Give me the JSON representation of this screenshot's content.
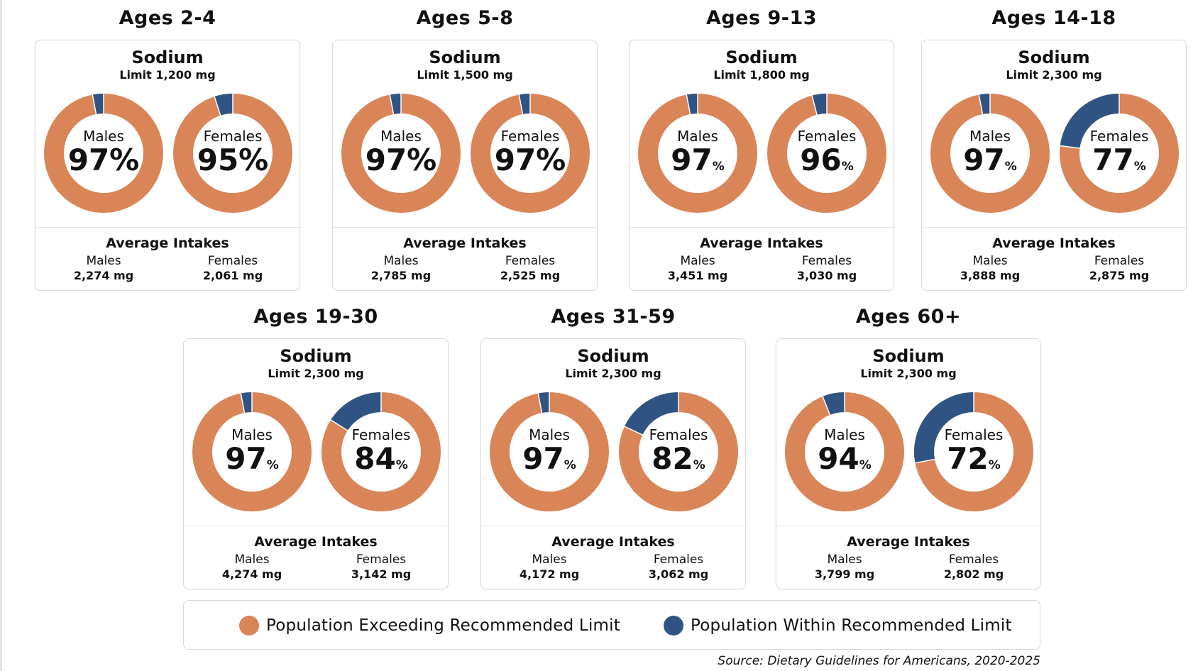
{
  "colors": {
    "exceeding": "#d98558",
    "within": "#2f5483",
    "text": "#111111"
  },
  "legend": {
    "exceeding_label": "Population Exceeding Recommended Limit",
    "within_label": "Population Within Recommended Limit"
  },
  "source": "Source: Dietary Guidelines for Americans, 2020-2025",
  "chart_data": {
    "type": "pie",
    "nutrient": "Sodium",
    "avg_title": "Average Intakes",
    "groups": [
      {
        "age": "Ages 2-4",
        "limit": "Limit 1,200 mg",
        "males": {
          "label": "Males",
          "pct": 97,
          "pct_text": "97%",
          "avg": "2,274 mg"
        },
        "females": {
          "label": "Females",
          "pct": 95,
          "pct_text": "95%",
          "avg": "2,061 mg"
        }
      },
      {
        "age": "Ages 5-8",
        "limit": "Limit 1,500 mg",
        "males": {
          "label": "Males",
          "pct": 97,
          "pct_text": "97%",
          "avg": "2,785 mg"
        },
        "females": {
          "label": "Females",
          "pct": 97,
          "pct_text": "97%",
          "avg": "2,525 mg"
        }
      },
      {
        "age": "Ages 9-13",
        "limit": "Limit 1,800 mg",
        "males": {
          "label": "Males",
          "pct": 97,
          "pct_text": "97",
          "avg": "3,451 mg"
        },
        "females": {
          "label": "Females",
          "pct": 96,
          "pct_text": "96",
          "avg": "3,030 mg"
        }
      },
      {
        "age": "Ages 14-18",
        "limit": "Limit 2,300 mg",
        "males": {
          "label": "Males",
          "pct": 97,
          "pct_text": "97",
          "avg": "3,888 mg"
        },
        "females": {
          "label": "Females",
          "pct": 77,
          "pct_text": "77",
          "avg": "2,875 mg"
        }
      },
      {
        "age": "Ages 19-30",
        "limit": "Limit 2,300 mg",
        "males": {
          "label": "Males",
          "pct": 97,
          "pct_text": "97",
          "avg": "4,274 mg"
        },
        "females": {
          "label": "Females",
          "pct": 84,
          "pct_text": "84",
          "avg": "3,142 mg"
        }
      },
      {
        "age": "Ages 31-59",
        "limit": "Limit 2,300 mg",
        "males": {
          "label": "Males",
          "pct": 97,
          "pct_text": "97",
          "avg": "4,172 mg"
        },
        "females": {
          "label": "Females",
          "pct": 82,
          "pct_text": "82",
          "avg": "3,062 mg"
        }
      },
      {
        "age": "Ages 60+",
        "limit": "Limit 2,300 mg",
        "males": {
          "label": "Males",
          "pct": 94,
          "pct_text": "94",
          "avg": "3,799 mg"
        },
        "females": {
          "label": "Females",
          "pct": 72,
          "pct_text": "72",
          "avg": "2,802 mg"
        }
      }
    ]
  }
}
